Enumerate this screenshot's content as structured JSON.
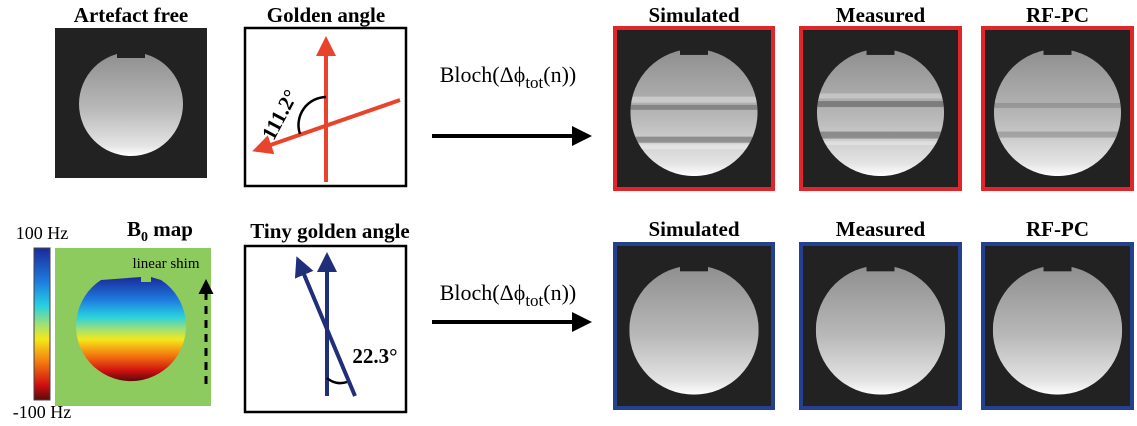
{
  "top_row": {
    "reference": {
      "title": "Artefact free"
    },
    "trajectory": {
      "title": "Golden angle",
      "angle_label": "111.2°"
    },
    "operator": {
      "prefix": "Bloch(Δϕ",
      "subscript": "tot",
      "suffix": "(n))"
    },
    "panels": [
      {
        "title": "Simulated"
      },
      {
        "title": "Measured"
      },
      {
        "title": "RF-PC"
      }
    ]
  },
  "bottom_row": {
    "field_map": {
      "title_main": "B",
      "title_subscript": "0",
      "title_rest": " map",
      "colorbar_max": "100 Hz",
      "colorbar_min": "-100 Hz",
      "shim_label": "linear shim"
    },
    "trajectory": {
      "title": "Tiny golden angle",
      "angle_label": "22.3°"
    },
    "operator": {
      "prefix": "Bloch(Δϕ",
      "subscript": "tot",
      "suffix": "(n))"
    },
    "panels": [
      {
        "title": "Simulated"
      },
      {
        "title": "Measured"
      },
      {
        "title": "RF-PC"
      }
    ]
  }
}
